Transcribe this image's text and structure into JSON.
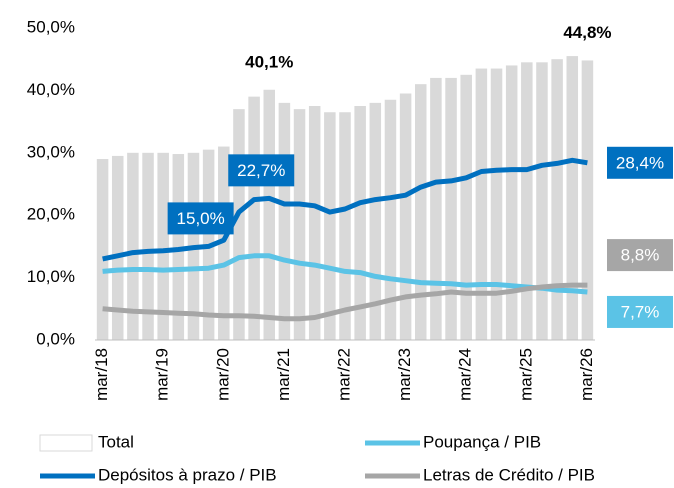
{
  "chart_data": {
    "type": "combo",
    "categories": [
      "mar/18",
      null,
      null,
      null,
      "mar/19",
      null,
      null,
      null,
      "mar/20",
      null,
      null,
      null,
      "mar/21",
      null,
      null,
      null,
      "mar/22",
      null,
      null,
      null,
      "mar/23",
      null,
      null,
      null,
      "mar/24",
      null,
      null,
      null,
      "mar/25",
      null,
      null,
      null,
      "mar/26"
    ],
    "ylim": [
      0,
      50
    ],
    "yticks": [
      {
        "value": 0,
        "label": "0,0%"
      },
      {
        "value": 10,
        "label": "10,0%"
      },
      {
        "value": 20,
        "label": "20,0%"
      },
      {
        "value": 30,
        "label": "30,0%"
      },
      {
        "value": 40,
        "label": "40,0%"
      },
      {
        "value": 50,
        "label": "50,0%"
      }
    ],
    "series": [
      {
        "name": "Total",
        "type": "bar",
        "color": "#d9d9d9",
        "values": [
          29,
          29.5,
          30,
          30,
          30,
          29.8,
          30,
          30.5,
          31,
          37,
          39,
          40.1,
          38,
          37,
          37.5,
          36.5,
          36.5,
          37.5,
          38,
          38.5,
          39.5,
          41,
          42,
          42,
          42.5,
          43.5,
          43.5,
          44,
          44.5,
          44.5,
          45,
          45.5,
          44.8
        ],
        "value_labels": [
          null,
          null,
          null,
          null,
          null,
          null,
          null,
          null,
          null,
          null,
          null,
          "40,1%",
          null,
          null,
          null,
          null,
          null,
          null,
          null,
          null,
          null,
          null,
          null,
          null,
          null,
          null,
          null,
          null,
          null,
          null,
          null,
          null,
          "44,8%"
        ]
      },
      {
        "name": "Depósitos à prazo / PIB",
        "type": "line",
        "color": "#0070c0",
        "values": [
          13,
          13.5,
          14,
          14.2,
          14.3,
          14.5,
          14.8,
          15.0,
          16,
          20.5,
          22.5,
          22.7,
          21.8,
          21.8,
          21.5,
          20.5,
          21,
          22,
          22.5,
          22.8,
          23.2,
          24.5,
          25.3,
          25.5,
          26,
          27,
          27.2,
          27.3,
          27.3,
          28,
          28.3,
          28.8,
          28.4
        ],
        "value_labels": [
          null,
          null,
          null,
          null,
          null,
          null,
          null,
          "15,0%",
          null,
          null,
          null,
          "22,7%",
          null,
          null,
          null,
          null,
          null,
          null,
          null,
          null,
          null,
          null,
          null,
          null,
          null,
          null,
          null,
          null,
          null,
          null,
          null,
          null,
          "28,4%"
        ]
      },
      {
        "name": "Poupança / PIB",
        "type": "line",
        "color": "#5bc3e6",
        "values": [
          11,
          11.2,
          11.3,
          11.3,
          11.2,
          11.3,
          11.4,
          11.5,
          12,
          13.2,
          13.5,
          13.5,
          12.8,
          12.3,
          12,
          11.5,
          11,
          10.8,
          10.2,
          9.8,
          9.5,
          9.2,
          9.1,
          9,
          8.8,
          8.9,
          8.9,
          8.7,
          8.5,
          8.3,
          8.0,
          7.9,
          7.7
        ],
        "value_labels": [
          null,
          null,
          null,
          null,
          null,
          null,
          null,
          null,
          null,
          null,
          null,
          null,
          null,
          null,
          null,
          null,
          null,
          null,
          null,
          null,
          null,
          null,
          null,
          null,
          null,
          null,
          null,
          null,
          null,
          null,
          null,
          null,
          "7,7%"
        ]
      },
      {
        "name": "Letras de Crédito / PIB",
        "type": "line",
        "color": "#a6a6a6",
        "values": [
          5,
          4.8,
          4.6,
          4.5,
          4.4,
          4.3,
          4.2,
          4.0,
          3.9,
          3.9,
          3.8,
          3.6,
          3.4,
          3.4,
          3.6,
          4.2,
          4.8,
          5.3,
          5.8,
          6.4,
          6.9,
          7.2,
          7.4,
          7.7,
          7.5,
          7.5,
          7.5,
          7.8,
          8.2,
          8.5,
          8.7,
          8.8,
          8.8
        ],
        "value_labels": [
          null,
          null,
          null,
          null,
          null,
          null,
          null,
          null,
          null,
          null,
          null,
          null,
          null,
          null,
          null,
          null,
          null,
          null,
          null,
          null,
          null,
          null,
          null,
          null,
          null,
          null,
          null,
          null,
          null,
          null,
          null,
          null,
          "8,8%"
        ]
      }
    ]
  }
}
